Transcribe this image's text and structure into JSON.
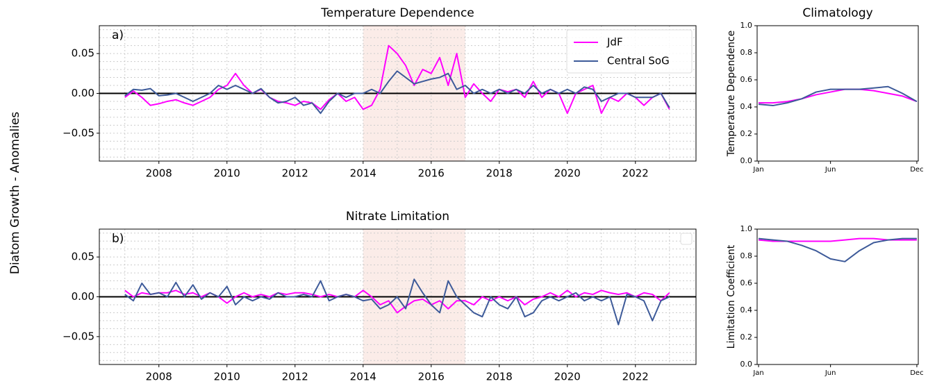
{
  "figure_label": "Diatom Growth - Anomalies",
  "chart_data": [
    {
      "type": "line",
      "title": "Temperature Dependence",
      "annotation": "a)",
      "xlim": [
        2006.25,
        2023.78
      ],
      "ylim": [
        -0.085,
        0.085
      ],
      "xticks": [
        2008,
        2010,
        2012,
        2014,
        2016,
        2018,
        2020,
        2022
      ],
      "yticks": [
        {
          "value": -0.05,
          "label": "−0.05"
        },
        {
          "value": 0,
          "label": "0.00"
        },
        0.05
      ],
      "minor_xticks": [
        2007,
        2009,
        2011,
        2013,
        2015,
        2017,
        2019,
        2021,
        2023
      ],
      "minor_yticks": [
        -0.08,
        -0.07,
        -0.06,
        -0.04,
        -0.03,
        -0.02,
        -0.01,
        0.01,
        0.02,
        0.03,
        0.04,
        0.06,
        0.07,
        0.08
      ],
      "grid": true,
      "hline": 0,
      "shade": [
        2014,
        2017
      ],
      "legend": "upper right",
      "x": [
        2007,
        2007.25,
        2007.5,
        2007.75,
        2008,
        2008.25,
        2008.5,
        2008.75,
        2009,
        2009.25,
        2009.5,
        2009.75,
        2010,
        2010.25,
        2010.5,
        2010.75,
        2011,
        2011.25,
        2011.5,
        2011.75,
        2012,
        2012.25,
        2012.5,
        2012.75,
        2013,
        2013.25,
        2013.5,
        2013.75,
        2014,
        2014.25,
        2014.5,
        2014.75,
        2015,
        2015.25,
        2015.5,
        2015.75,
        2016,
        2016.25,
        2016.5,
        2016.75,
        2017,
        2017.25,
        2017.5,
        2017.75,
        2018,
        2018.25,
        2018.5,
        2018.75,
        2019,
        2019.25,
        2019.5,
        2019.75,
        2020,
        2020.25,
        2020.5,
        2020.75,
        2021,
        2021.25,
        2021.5,
        2021.75,
        2022,
        2022.25,
        2022.5,
        2022.75,
        2023
      ],
      "series": [
        {
          "name": "JdF",
          "color": "#ff00ff",
          "values": [
            -0.005,
            0.003,
            -0.005,
            -0.015,
            -0.013,
            -0.01,
            -0.008,
            -0.012,
            -0.015,
            -0.01,
            -0.005,
            0.005,
            0.01,
            0.025,
            0.01,
            0.0,
            0.005,
            -0.005,
            -0.01,
            -0.012,
            -0.015,
            -0.01,
            -0.012,
            -0.02,
            -0.008,
            0.0,
            -0.01,
            -0.005,
            -0.02,
            -0.015,
            0.005,
            0.06,
            0.05,
            0.035,
            0.01,
            0.03,
            0.025,
            0.045,
            0.01,
            0.05,
            -0.005,
            0.012,
            0.0,
            -0.01,
            0.005,
            0.002,
            0.005,
            -0.005,
            0.015,
            -0.005,
            0.005,
            0.0,
            -0.025,
            0.0,
            0.005,
            0.01,
            -0.025,
            -0.005,
            -0.01,
            0.0,
            -0.005,
            -0.015,
            -0.005,
            0.0,
            -0.02
          ]
        },
        {
          "name": "Central SoG",
          "color": "#3d5a99",
          "values": [
            -0.003,
            0.005,
            0.004,
            0.006,
            -0.003,
            -0.002,
            0.0,
            -0.005,
            -0.01,
            -0.005,
            0.0,
            0.01,
            0.005,
            0.01,
            0.005,
            0.0,
            0.006,
            -0.005,
            -0.012,
            -0.01,
            -0.005,
            -0.015,
            -0.012,
            -0.025,
            -0.01,
            0.0,
            -0.005,
            0.0,
            0.0,
            0.005,
            0.0,
            0.015,
            0.028,
            0.02,
            0.012,
            0.015,
            0.018,
            0.02,
            0.025,
            0.005,
            0.01,
            0.0,
            0.005,
            0.0,
            0.005,
            0.0,
            0.005,
            0.0,
            0.01,
            0.0,
            0.005,
            0.0,
            0.005,
            0.0,
            0.008,
            0.005,
            -0.01,
            -0.005,
            0.0,
            0.0,
            -0.005,
            -0.005,
            -0.005,
            0.0,
            -0.018
          ]
        }
      ]
    },
    {
      "type": "line",
      "title": "Climatology",
      "ylabel": "Temperature Dependence",
      "xlim": [
        0.9,
        12.1
      ],
      "ylim": [
        0,
        1
      ],
      "xticks": [
        {
          "value": 1,
          "label": "Jan"
        },
        {
          "value": 6,
          "label": "Jun"
        },
        {
          "value": 12,
          "label": "Dec"
        }
      ],
      "yticks": [
        {
          "value": 0,
          "label": "0.0"
        },
        0.2,
        0.4,
        0.6,
        0.8,
        {
          "value": 1,
          "label": "1.0"
        }
      ],
      "x": [
        1,
        2,
        3,
        4,
        5,
        6,
        7,
        8,
        9,
        10,
        11,
        12
      ],
      "series": [
        {
          "color": "#ff00ff",
          "values": [
            0.43,
            0.43,
            0.44,
            0.46,
            0.49,
            0.51,
            0.53,
            0.53,
            0.52,
            0.5,
            0.48,
            0.44
          ]
        },
        {
          "color": "#3d5a99",
          "values": [
            0.42,
            0.41,
            0.43,
            0.46,
            0.51,
            0.53,
            0.53,
            0.53,
            0.54,
            0.55,
            0.5,
            0.44
          ]
        }
      ]
    },
    {
      "type": "line",
      "title": "Nitrate Limitation",
      "annotation": "b)",
      "xlim": [
        2006.25,
        2023.78
      ],
      "ylim": [
        -0.085,
        0.085
      ],
      "xticks": [
        2008,
        2010,
        2012,
        2014,
        2016,
        2018,
        2020,
        2022
      ],
      "yticks": [
        {
          "value": -0.05,
          "label": "−0.05"
        },
        {
          "value": 0,
          "label": "0.00"
        },
        0.05
      ],
      "minor_xticks": [
        2007,
        2009,
        2011,
        2013,
        2015,
        2017,
        2019,
        2021,
        2023
      ],
      "minor_yticks": [
        -0.08,
        -0.07,
        -0.06,
        -0.04,
        -0.03,
        -0.02,
        -0.01,
        0.01,
        0.02,
        0.03,
        0.04,
        0.06,
        0.07,
        0.08
      ],
      "grid": true,
      "hline": 0,
      "shade": [
        2014,
        2017
      ],
      "legend": "upper right",
      "x": [
        2007,
        2007.25,
        2007.5,
        2007.75,
        2008,
        2008.25,
        2008.5,
        2008.75,
        2009,
        2009.25,
        2009.5,
        2009.75,
        2010,
        2010.25,
        2010.5,
        2010.75,
        2011,
        2011.25,
        2011.5,
        2011.75,
        2012,
        2012.25,
        2012.5,
        2012.75,
        2013,
        2013.25,
        2013.5,
        2013.75,
        2014,
        2014.25,
        2014.5,
        2014.75,
        2015,
        2015.25,
        2015.5,
        2015.75,
        2016,
        2016.25,
        2016.5,
        2016.75,
        2017,
        2017.25,
        2017.5,
        2017.75,
        2018,
        2018.25,
        2018.5,
        2018.75,
        2019,
        2019.25,
        2019.5,
        2019.75,
        2020,
        2020.25,
        2020.5,
        2020.75,
        2021,
        2021.25,
        2021.5,
        2021.75,
        2022,
        2022.25,
        2022.5,
        2022.75,
        2023
      ],
      "series": [
        {
          "color": "#ff00ff",
          "values": [
            0.008,
            0.0,
            0.005,
            0.003,
            0.005,
            0.005,
            0.008,
            0.003,
            0.005,
            0.0,
            0.005,
            0.0,
            -0.008,
            0.0,
            0.005,
            0.0,
            0.003,
            0.0,
            0.005,
            0.003,
            0.005,
            0.005,
            0.003,
            0.0,
            0.003,
            0.0,
            0.003,
            0.0,
            0.008,
            0.0,
            -0.01,
            -0.005,
            -0.02,
            -0.012,
            -0.005,
            -0.003,
            -0.01,
            -0.005,
            -0.015,
            -0.005,
            -0.005,
            -0.01,
            0.0,
            -0.005,
            0.0,
            -0.005,
            0.0,
            -0.01,
            -0.003,
            0.0,
            0.005,
            0.0,
            0.008,
            0.0,
            0.005,
            0.003,
            0.008,
            0.005,
            0.003,
            0.005,
            0.0,
            0.005,
            0.003,
            -0.005,
            0.005
          ]
        },
        {
          "color": "#3d5a99",
          "values": [
            0.003,
            -0.005,
            0.017,
            0.003,
            0.005,
            0.0,
            0.018,
            0.0,
            0.015,
            -0.003,
            0.005,
            0.0,
            0.013,
            -0.01,
            0.0,
            -0.005,
            0.0,
            -0.003,
            0.005,
            0.0,
            0.0,
            0.003,
            0.0,
            0.02,
            -0.005,
            0.0,
            0.003,
            0.0,
            -0.005,
            -0.003,
            -0.015,
            -0.01,
            0.0,
            -0.015,
            0.022,
            0.005,
            -0.01,
            -0.02,
            0.02,
            0.0,
            -0.01,
            -0.02,
            -0.025,
            0.0,
            -0.01,
            -0.015,
            0.0,
            -0.025,
            -0.02,
            -0.005,
            0.0,
            -0.005,
            0.0,
            0.005,
            -0.005,
            0.0,
            -0.005,
            0.0,
            -0.035,
            0.003,
            0.0,
            -0.005,
            -0.03,
            -0.005,
            0.0
          ]
        }
      ]
    },
    {
      "type": "line",
      "ylabel": "Limitation Coefficient",
      "xlim": [
        0.9,
        12.1
      ],
      "ylim": [
        0,
        1
      ],
      "xticks": [
        {
          "value": 1,
          "label": "Jan"
        },
        {
          "value": 6,
          "label": "Jun"
        },
        {
          "value": 12,
          "label": "Dec"
        }
      ],
      "yticks": [
        {
          "value": 0,
          "label": "0.0"
        },
        0.2,
        0.4,
        0.6,
        0.8,
        {
          "value": 1,
          "label": "1.0"
        }
      ],
      "x": [
        1,
        2,
        3,
        4,
        5,
        6,
        7,
        8,
        9,
        10,
        11,
        12
      ],
      "series": [
        {
          "color": "#ff00ff",
          "values": [
            0.92,
            0.91,
            0.91,
            0.91,
            0.91,
            0.91,
            0.92,
            0.93,
            0.93,
            0.92,
            0.92,
            0.92
          ]
        },
        {
          "color": "#3d5a99",
          "values": [
            0.93,
            0.92,
            0.91,
            0.88,
            0.84,
            0.78,
            0.76,
            0.84,
            0.9,
            0.92,
            0.93,
            0.93
          ]
        }
      ]
    }
  ]
}
